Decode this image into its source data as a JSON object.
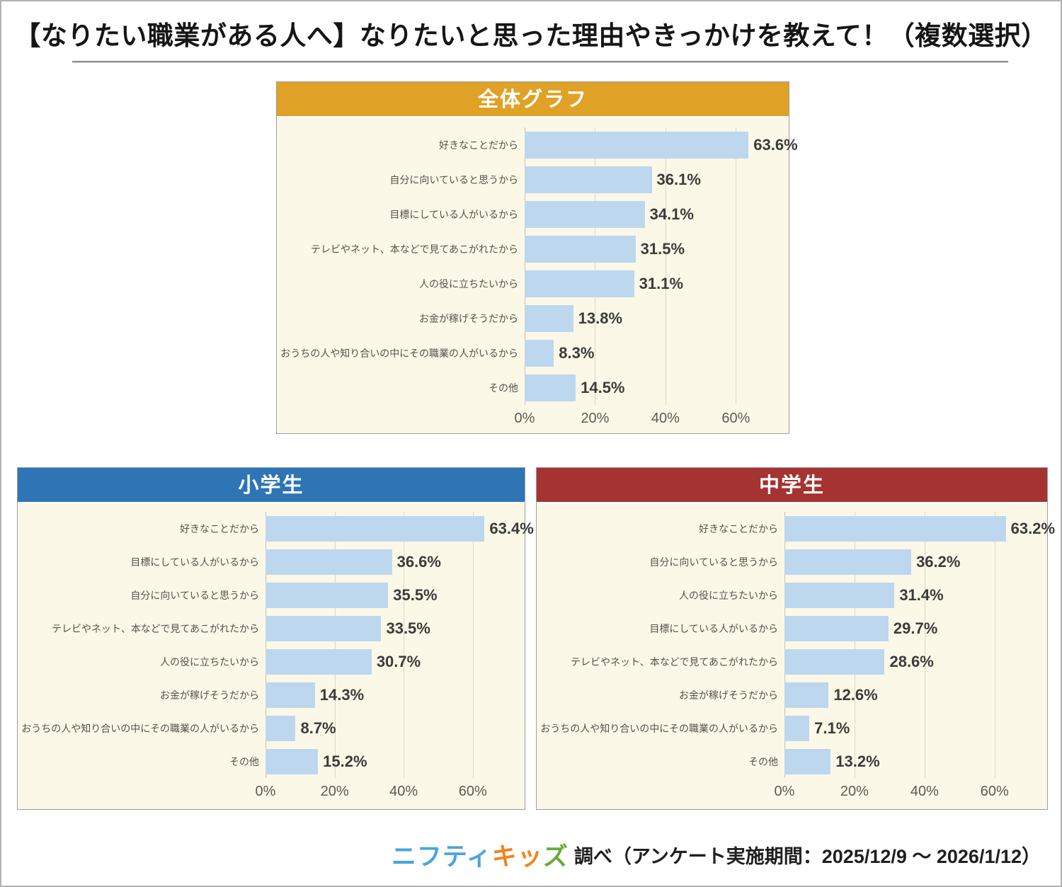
{
  "page": {
    "title": "【なりたい職業がある人へ】なりたいと思った理由やきっかけを教えて！（複数選択）"
  },
  "colors": {
    "bar": "#bdd7ee",
    "chart_background": "#fcf8e7",
    "overall_header": "#dfa226",
    "elementary_header": "#2e75b6",
    "junior_high_header": "#a43331"
  },
  "chart_data": [
    {
      "type": "bar",
      "orientation": "horizontal",
      "title": "全体グラフ",
      "header_color": "#dfa226",
      "categories": [
        "好きなことだから",
        "自分に向いていると思うから",
        "目標にしている人がいるから",
        "テレビやネット、本などで見てあこがれたから",
        "人の役に立ちたいから",
        "お金が稼げそうだから",
        "おうちの人や知り合いの中にその職業の人がいるから",
        "その他"
      ],
      "values": [
        63.6,
        36.1,
        34.1,
        31.5,
        31.1,
        13.8,
        8.3,
        14.5
      ],
      "value_labels": [
        "63.6%",
        "36.1%",
        "34.1%",
        "31.5%",
        "31.1%",
        "13.8%",
        "8.3%",
        "14.5%"
      ],
      "xlim": [
        0,
        75
      ],
      "tick_values": [
        0,
        20,
        40,
        60
      ],
      "x_ticks": [
        "0%",
        "20%",
        "40%",
        "60%"
      ],
      "grid": true,
      "legend": false
    },
    {
      "type": "bar",
      "orientation": "horizontal",
      "title": "小学生",
      "header_color": "#2e75b6",
      "categories": [
        "好きなことだから",
        "目標にしている人がいるから",
        "自分に向いていると思うから",
        "テレビやネット、本などで見てあこがれたから",
        "人の役に立ちたいから",
        "お金が稼げそうだから",
        "おうちの人や知り合いの中にその職業の人がいるから",
        "その他"
      ],
      "values": [
        63.4,
        36.6,
        35.5,
        33.5,
        30.7,
        14.3,
        8.7,
        15.2
      ],
      "value_labels": [
        "63.4%",
        "36.6%",
        "35.5%",
        "33.5%",
        "30.7%",
        "14.3%",
        "8.7%",
        "15.2%"
      ],
      "xlim": [
        0,
        75
      ],
      "tick_values": [
        0,
        20,
        40,
        60
      ],
      "x_ticks": [
        "0%",
        "20%",
        "40%",
        "60%"
      ],
      "grid": true,
      "legend": false
    },
    {
      "type": "bar",
      "orientation": "horizontal",
      "title": "中学生",
      "header_color": "#a43331",
      "categories": [
        "好きなことだから",
        "自分に向いていると思うから",
        "人の役に立ちたいから",
        "目標にしている人がいるから",
        "テレビやネット、本などで見てあこがれたから",
        "お金が稼げそうだから",
        "おうちの人や知り合いの中にその職業の人がいるから",
        "その他"
      ],
      "values": [
        63.2,
        36.2,
        31.4,
        29.7,
        28.6,
        12.6,
        7.1,
        13.2
      ],
      "value_labels": [
        "63.2%",
        "36.2%",
        "31.4%",
        "29.7%",
        "28.6%",
        "12.6%",
        "7.1%",
        "13.2%"
      ],
      "xlim": [
        0,
        75
      ],
      "tick_values": [
        0,
        20,
        40,
        60
      ],
      "x_ticks": [
        "0%",
        "20%",
        "40%",
        "60%"
      ],
      "grid": true,
      "legend": false
    }
  ],
  "footer": {
    "logo_nifty": "ニフティ",
    "logo_kids_chars": [
      {
        "ch": "キ",
        "color": "#f0831e"
      },
      {
        "ch": "ッ",
        "color": "#f0831e"
      },
      {
        "ch": "ズ",
        "color": "#6ca93c"
      }
    ],
    "note": "調べ（アンケート実施期間：2025/12/9 ～ 2026/1/12）"
  }
}
